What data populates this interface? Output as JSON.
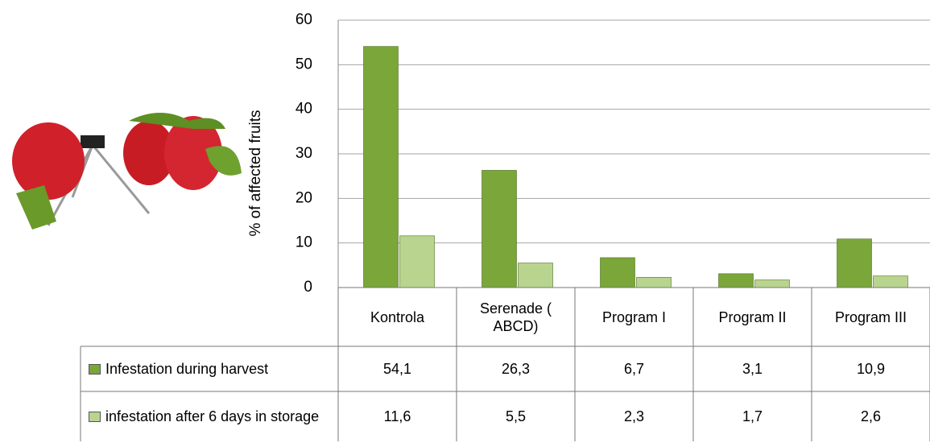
{
  "chart_data": {
    "type": "bar",
    "y_label": "% of affected fruits",
    "categories": [
      "Kontrola",
      "Serenade ( ABCD)",
      "Program I",
      "Program II",
      "Program III"
    ],
    "series": [
      {
        "name": "Infestation during harvest",
        "color": "#7aa63a",
        "values": [
          54.1,
          26.3,
          6.7,
          3.1,
          10.9
        ],
        "value_labels": [
          "54,1",
          "26,3",
          "6,7",
          "3,1",
          "10,9"
        ]
      },
      {
        "name": "infestation after 6 days in storage",
        "color": "#b9d48e",
        "values": [
          11.6,
          5.5,
          2.3,
          1.7,
          2.6
        ],
        "value_labels": [
          "11,6",
          "5,5",
          "2,3",
          "1,7",
          "2,6"
        ]
      }
    ],
    "ylim": [
      0,
      60
    ],
    "yticks": [
      0,
      10,
      20,
      30,
      40,
      50,
      60
    ],
    "grid": true
  }
}
